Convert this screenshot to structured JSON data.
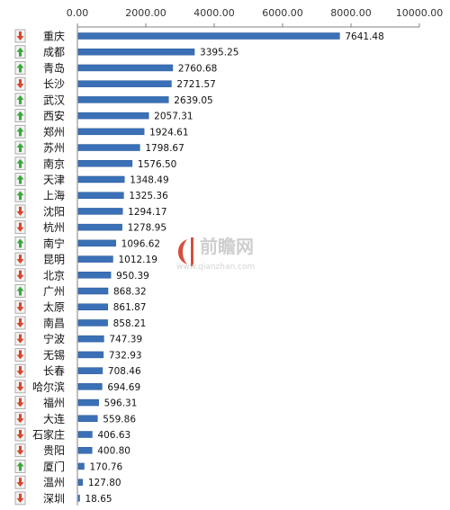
{
  "watermark": {
    "brand": "前瞻网",
    "url": "www.qianzhan.com"
  },
  "colors": {
    "bar": "#3a70b6",
    "bar_edge": "#2a5a9a",
    "axis": "#808080",
    "trend_up": "#3aa83a",
    "trend_down": "#d9452b",
    "icon_border": "#9a9a9a",
    "icon_bg": "#f3f3f3"
  },
  "chart_data": {
    "type": "bar",
    "orientation": "horizontal",
    "title": "",
    "xlabel": "",
    "ylabel": "",
    "xlim": [
      0,
      10000
    ],
    "x_ticks": [
      "0.00",
      "2000.00",
      "4000.00",
      "6000.00",
      "8000.00",
      "10000.00"
    ],
    "x_tick_values": [
      0,
      2000,
      4000,
      6000,
      8000,
      10000
    ],
    "x_axis_position": "top",
    "grid": false,
    "categories": [
      "重庆",
      "成都",
      "青岛",
      "长沙",
      "武汉",
      "西安",
      "郑州",
      "苏州",
      "南京",
      "天津",
      "上海",
      "沈阳",
      "杭州",
      "南宁",
      "昆明",
      "北京",
      "广州",
      "太原",
      "南昌",
      "宁波",
      "无锡",
      "长春",
      "哈尔滨",
      "福州",
      "大连",
      "石家庄",
      "贵阳",
      "厦门",
      "温州",
      "深圳"
    ],
    "values": [
      7641.48,
      3395.25,
      2760.68,
      2721.57,
      2639.05,
      2057.31,
      1924.61,
      1798.67,
      1576.5,
      1348.49,
      1325.36,
      1294.17,
      1278.95,
      1096.62,
      1012.19,
      950.39,
      868.32,
      861.87,
      858.21,
      747.39,
      732.93,
      708.46,
      694.69,
      596.31,
      559.86,
      406.63,
      400.8,
      170.76,
      127.8,
      18.65
    ],
    "value_labels": [
      "7641.48",
      "3395.25",
      "2760.68",
      "2721.57",
      "2639.05",
      "2057.31",
      "1924.61",
      "1798.67",
      "1576.50",
      "1348.49",
      "1325.36",
      "1294.17",
      "1278.95",
      "1096.62",
      "1012.19",
      "950.39",
      "868.32",
      "861.87",
      "858.21",
      "747.39",
      "732.93",
      "708.46",
      "694.69",
      "596.31",
      "559.86",
      "406.63",
      "400.80",
      "170.76",
      "127.80",
      "18.65"
    ],
    "trends": [
      "down",
      "up",
      "up",
      "down",
      "up",
      "up",
      "up",
      "up",
      "up",
      "up",
      "up",
      "down",
      "down",
      "up",
      "down",
      "down",
      "up",
      "down",
      "down",
      "down",
      "down",
      "down",
      "down",
      "down",
      "down",
      "down",
      "down",
      "up",
      "down",
      "down"
    ]
  }
}
